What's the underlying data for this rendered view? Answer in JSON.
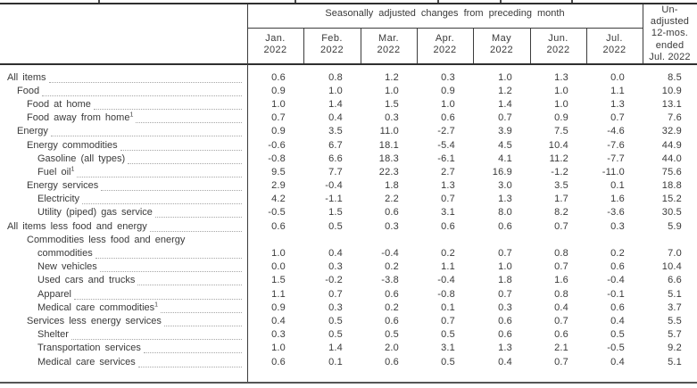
{
  "table": {
    "header": {
      "sa_title": "Seasonally adjusted changes from preceding month",
      "months": [
        {
          "month": "Jan.",
          "year": "2022"
        },
        {
          "month": "Feb.",
          "year": "2022"
        },
        {
          "month": "Mar.",
          "year": "2022"
        },
        {
          "month": "Apr.",
          "year": "2022"
        },
        {
          "month": "May",
          "year": "2022"
        },
        {
          "month": "Jun.",
          "year": "2022"
        },
        {
          "month": "Jul.",
          "year": "2022"
        }
      ],
      "unadjusted_label": "Un-adjusted 12-mos. ended Jul. 2022",
      "unadjusted_lines": [
        "Un-",
        "adjusted",
        "12-mos.",
        "ended",
        "Jul. 2022"
      ]
    },
    "rows": [
      {
        "label": "All items",
        "indent": 0,
        "values": [
          "0.6",
          "0.8",
          "1.2",
          "0.3",
          "1.0",
          "1.3",
          "0.0",
          "8.5"
        ]
      },
      {
        "label": "Food",
        "indent": 1,
        "values": [
          "0.9",
          "1.0",
          "1.0",
          "0.9",
          "1.2",
          "1.0",
          "1.1",
          "10.9"
        ]
      },
      {
        "label": "Food at home",
        "indent": 2,
        "values": [
          "1.0",
          "1.4",
          "1.5",
          "1.0",
          "1.4",
          "1.0",
          "1.3",
          "13.1"
        ]
      },
      {
        "label": "Food away from home",
        "footnote": "1",
        "indent": 2,
        "values": [
          "0.7",
          "0.4",
          "0.3",
          "0.6",
          "0.7",
          "0.9",
          "0.7",
          "7.6"
        ]
      },
      {
        "label": "Energy",
        "indent": 1,
        "values": [
          "0.9",
          "3.5",
          "11.0",
          "-2.7",
          "3.9",
          "7.5",
          "-4.6",
          "32.9"
        ]
      },
      {
        "label": "Energy commodities",
        "indent": 2,
        "values": [
          "-0.6",
          "6.7",
          "18.1",
          "-5.4",
          "4.5",
          "10.4",
          "-7.6",
          "44.9"
        ]
      },
      {
        "label": "Gasoline (all types)",
        "indent": 3,
        "values": [
          "-0.8",
          "6.6",
          "18.3",
          "-6.1",
          "4.1",
          "11.2",
          "-7.7",
          "44.0"
        ]
      },
      {
        "label": "Fuel oil",
        "footnote": "1",
        "indent": 3,
        "values": [
          "9.5",
          "7.7",
          "22.3",
          "2.7",
          "16.9",
          "-1.2",
          "-11.0",
          "75.6"
        ]
      },
      {
        "label": "Energy services",
        "indent": 2,
        "values": [
          "2.9",
          "-0.4",
          "1.8",
          "1.3",
          "3.0",
          "3.5",
          "0.1",
          "18.8"
        ]
      },
      {
        "label": "Electricity",
        "indent": 3,
        "values": [
          "4.2",
          "-1.1",
          "2.2",
          "0.7",
          "1.3",
          "1.7",
          "1.6",
          "15.2"
        ]
      },
      {
        "label": "Utility (piped) gas service",
        "indent": 3,
        "values": [
          "-0.5",
          "1.5",
          "0.6",
          "3.1",
          "8.0",
          "8.2",
          "-3.6",
          "30.5"
        ]
      },
      {
        "label": "All items less food and energy",
        "indent": 0,
        "values": [
          "0.6",
          "0.5",
          "0.3",
          "0.6",
          "0.6",
          "0.7",
          "0.3",
          "5.9"
        ]
      },
      {
        "label": "Commodities less food and energy",
        "label2": "commodities",
        "indent": 2,
        "indent2": 3,
        "values": [
          "1.0",
          "0.4",
          "-0.4",
          "0.2",
          "0.7",
          "0.8",
          "0.2",
          "7.0"
        ]
      },
      {
        "label": "New vehicles",
        "indent": 3,
        "values": [
          "0.0",
          "0.3",
          "0.2",
          "1.1",
          "1.0",
          "0.7",
          "0.6",
          "10.4"
        ]
      },
      {
        "label": "Used cars and trucks",
        "indent": 3,
        "values": [
          "1.5",
          "-0.2",
          "-3.8",
          "-0.4",
          "1.8",
          "1.6",
          "-0.4",
          "6.6"
        ]
      },
      {
        "label": "Apparel",
        "indent": 3,
        "values": [
          "1.1",
          "0.7",
          "0.6",
          "-0.8",
          "0.7",
          "0.8",
          "-0.1",
          "5.1"
        ]
      },
      {
        "label": "Medical care commodities",
        "footnote": "1",
        "indent": 3,
        "values": [
          "0.9",
          "0.3",
          "0.2",
          "0.1",
          "0.3",
          "0.4",
          "0.6",
          "3.7"
        ]
      },
      {
        "label": "Services less energy services",
        "indent": 2,
        "values": [
          "0.4",
          "0.5",
          "0.6",
          "0.7",
          "0.6",
          "0.7",
          "0.4",
          "5.5"
        ]
      },
      {
        "label": "Shelter",
        "indent": 3,
        "values": [
          "0.3",
          "0.5",
          "0.5",
          "0.5",
          "0.6",
          "0.6",
          "0.5",
          "5.7"
        ]
      },
      {
        "label": "Transportation services",
        "indent": 3,
        "values": [
          "1.0",
          "1.4",
          "2.0",
          "3.1",
          "1.3",
          "2.1",
          "-0.5",
          "9.2"
        ]
      },
      {
        "label": "Medical care services",
        "indent": 3,
        "values": [
          "0.6",
          "0.1",
          "0.6",
          "0.5",
          "0.4",
          "0.7",
          "0.4",
          "5.1"
        ]
      }
    ]
  }
}
